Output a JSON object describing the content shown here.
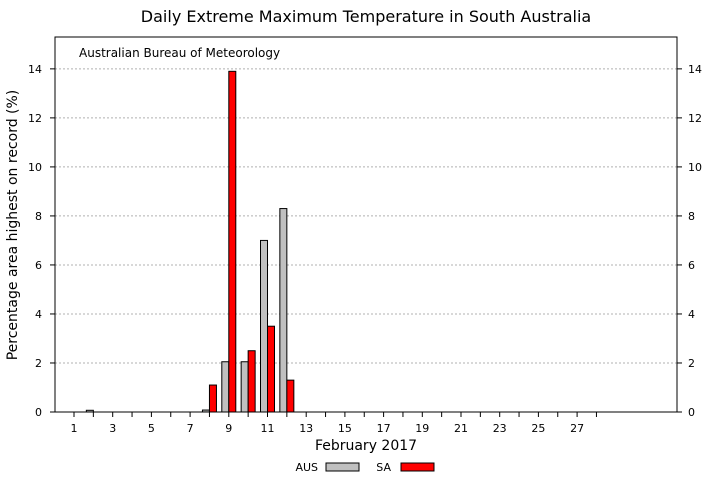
{
  "chart_data": {
    "type": "bar",
    "title": "Daily Extreme Maximum Temperature in South Australia",
    "annotation": "Australian Bureau of Meteorology",
    "xlabel": "February 2017",
    "ylabel": "Percentage area highest on record (%)",
    "ylim": [
      0,
      15.3
    ],
    "yticks": [
      "0",
      "2",
      "4",
      "6",
      "8",
      "10",
      "12",
      "14"
    ],
    "xticks": [
      "1",
      "3",
      "5",
      "7",
      "9",
      "11",
      "13",
      "15",
      "17",
      "19",
      "21",
      "23",
      "25",
      "27"
    ],
    "x": [
      1,
      2,
      3,
      4,
      5,
      6,
      7,
      8,
      9,
      10,
      11,
      12,
      13,
      14,
      15,
      16,
      17,
      18,
      19,
      20,
      21,
      22,
      23,
      24,
      25,
      26,
      27,
      28
    ],
    "grid": true,
    "legend_position": "bottom-center",
    "series": [
      {
        "name": "AUS",
        "color": "#c0c0c0",
        "values": [
          0,
          0.07,
          0,
          0,
          0,
          0,
          0,
          0.08,
          2.05,
          2.05,
          7.0,
          8.3,
          0,
          0,
          0,
          0,
          0,
          0,
          0,
          0,
          0,
          0,
          0,
          0,
          0,
          0,
          0,
          0
        ]
      },
      {
        "name": "SA",
        "color": "#ff0000",
        "values": [
          0,
          0,
          0,
          0,
          0,
          0,
          0,
          1.1,
          13.9,
          2.5,
          3.5,
          1.3,
          0,
          0,
          0,
          0,
          0,
          0,
          0,
          0,
          0,
          0,
          0,
          0,
          0,
          0,
          0,
          0
        ]
      }
    ]
  }
}
